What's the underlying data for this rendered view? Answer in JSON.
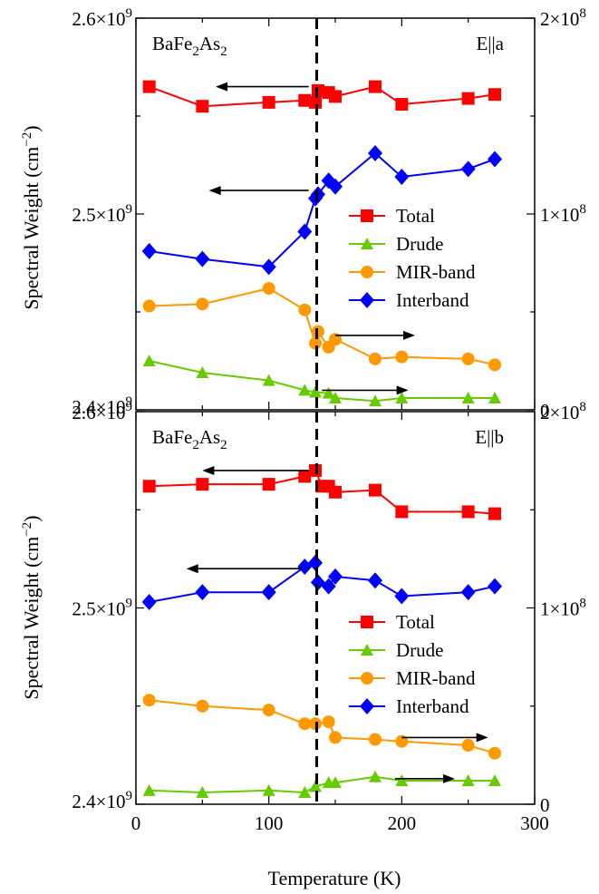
{
  "figure": {
    "xlabel": "Temperature (K)",
    "ylabel": "Spectral Weight (cm",
    "ylabel_sup": "−2",
    "ylabel_end": ")",
    "x_ticks": [
      "0",
      "100",
      "200",
      "300"
    ],
    "transition_T": 136
  },
  "colors": {
    "Total": "#ff0000",
    "Drude": "#66cc00",
    "MIR-band": "#ff9900",
    "Interband": "#0000ff",
    "axis": "#000000"
  },
  "legend": [
    "Total",
    "Drude",
    "MIR-band",
    "Interband"
  ],
  "chart_data": [
    {
      "type": "line",
      "panel": "top",
      "title_main": "BaFe",
      "title_sub1": "2",
      "title_mid": "As",
      "title_sub2": "2",
      "polarization": "E||a",
      "xlim": [
        0,
        300
      ],
      "left_ylim": [
        2400000000.0,
        2600000000.0
      ],
      "right_ylim": [
        0,
        200000000.0
      ],
      "left_ticks": [
        {
          "mant": "2.4×10",
          "exp": "9",
          "value": 2400000000.0
        },
        {
          "mant": "2.5×10",
          "exp": "9",
          "value": 2500000000.0
        },
        {
          "mant": "2.6×10",
          "exp": "9",
          "value": 2600000000.0
        }
      ],
      "right_ticks": [
        {
          "mant": "0",
          "exp": "",
          "value": 0
        },
        {
          "mant": "1×10",
          "exp": "8",
          "value": 100000000.0
        },
        {
          "mant": "2×10",
          "exp": "8",
          "value": 200000000.0
        }
      ],
      "series": [
        {
          "name": "Total",
          "axis": "left",
          "marker": "square",
          "x": [
            10,
            50,
            100,
            127,
            135,
            137,
            145,
            150,
            180,
            200,
            250,
            270
          ],
          "y": [
            2565000000.0,
            2555000000.0,
            2557000000.0,
            2558000000.0,
            2557000000.0,
            2563000000.0,
            2562000000.0,
            2560000000.0,
            2565000000.0,
            2556000000.0,
            2559000000.0,
            2561000000.0
          ]
        },
        {
          "name": "Drude",
          "axis": "right",
          "marker": "triangle",
          "x": [
            10,
            50,
            100,
            127,
            135,
            145,
            150,
            180,
            200,
            250,
            270
          ],
          "y": [
            25000000.0,
            19000000.0,
            15000000.0,
            10000000.0,
            9000000.0,
            8500000.0,
            6000000.0,
            4500000.0,
            6000000.0,
            6000000.0,
            6000000.0
          ]
        },
        {
          "name": "MIR-band",
          "axis": "right",
          "marker": "circle",
          "x": [
            10,
            50,
            100,
            127,
            135,
            137,
            145,
            150,
            180,
            200,
            250,
            270
          ],
          "y": [
            53000000.0,
            54000000.0,
            62000000.0,
            51000000.0,
            34000000.0,
            40000000.0,
            32000000.0,
            36000000.0,
            26000000.0,
            27000000.0,
            26000000.0,
            23000000.0
          ]
        },
        {
          "name": "Interband",
          "axis": "right",
          "marker": "diamond",
          "x": [
            10,
            50,
            100,
            127,
            135,
            137,
            145,
            150,
            180,
            200,
            250,
            270
          ],
          "y": [
            81000000.0,
            77000000.0,
            73000000.0,
            91000000.0,
            108000000.0,
            110000000.0,
            117000000.0,
            114000000.0,
            131000000.0,
            119000000.0,
            123000000.0,
            128000000.0
          ]
        }
      ],
      "arrows": [
        {
          "x_from": 130,
          "x_to": 60,
          "axis": "left",
          "y": 2565000000.0
        },
        {
          "x_from": 130,
          "x_to": 55,
          "axis": "right",
          "y": 112000000.0
        },
        {
          "x_from": 150,
          "x_to": 210,
          "axis": "right",
          "y": 38000000.0
        },
        {
          "x_from": 140,
          "x_to": 205,
          "axis": "right",
          "y": 10000000.0
        }
      ]
    },
    {
      "type": "line",
      "panel": "bottom",
      "title_main": "BaFe",
      "title_sub1": "2",
      "title_mid": "As",
      "title_sub2": "2",
      "polarization": "E||b",
      "xlim": [
        0,
        300
      ],
      "left_ylim": [
        2400000000.0,
        2600000000.0
      ],
      "right_ylim": [
        0,
        200000000.0
      ],
      "left_ticks": [
        {
          "mant": "2.4×10",
          "exp": "9",
          "value": 2400000000.0
        },
        {
          "mant": "2.5×10",
          "exp": "9",
          "value": 2500000000.0
        },
        {
          "mant": "2.6×10",
          "exp": "9",
          "value": 2600000000.0
        }
      ],
      "right_ticks": [
        {
          "mant": "0",
          "exp": "",
          "value": 0
        },
        {
          "mant": "1×10",
          "exp": "8",
          "value": 100000000.0
        },
        {
          "mant": "2×10",
          "exp": "8",
          "value": 200000000.0
        }
      ],
      "series": [
        {
          "name": "Total",
          "axis": "left",
          "marker": "square",
          "x": [
            10,
            50,
            100,
            127,
            135,
            140,
            145,
            150,
            180,
            200,
            250,
            270
          ],
          "y": [
            2562000000.0,
            2563000000.0,
            2563000000.0,
            2567000000.0,
            2570000000.0,
            2562000000.0,
            2562000000.0,
            2559000000.0,
            2560000000.0,
            2549000000.0,
            2549000000.0,
            2548000000.0
          ]
        },
        {
          "name": "Drude",
          "axis": "right",
          "marker": "triangle",
          "x": [
            10,
            50,
            100,
            127,
            135,
            145,
            150,
            180,
            200,
            250,
            270
          ],
          "y": [
            7000000.0,
            6000000.0,
            7000000.0,
            6000000.0,
            9000000.0,
            11000000.0,
            11000000.0,
            14000000.0,
            12000000.0,
            12000000.0,
            12000000.0
          ]
        },
        {
          "name": "MIR-band",
          "axis": "right",
          "marker": "circle",
          "x": [
            10,
            50,
            100,
            127,
            135,
            145,
            150,
            180,
            200,
            250,
            270
          ],
          "y": [
            53000000.0,
            50000000.0,
            48000000.0,
            41000000.0,
            41000000.0,
            42000000.0,
            34000000.0,
            33000000.0,
            32000000.0,
            30000000.0,
            26000000.0
          ]
        },
        {
          "name": "Interband",
          "axis": "right",
          "marker": "diamond",
          "x": [
            10,
            50,
            100,
            127,
            135,
            137,
            145,
            150,
            180,
            200,
            250,
            270
          ],
          "y": [
            103000000.0,
            108000000.0,
            108000000.0,
            121000000.0,
            123000000.0,
            113000000.0,
            111000000.0,
            116000000.0,
            114000000.0,
            106000000.0,
            108000000.0,
            111000000.0
          ]
        }
      ],
      "arrows": [
        {
          "x_from": 130,
          "x_to": 50,
          "axis": "left",
          "y": 2570000000.0
        },
        {
          "x_from": 125,
          "x_to": 38,
          "axis": "right",
          "y": 120000000.0
        },
        {
          "x_from": 200,
          "x_to": 265,
          "axis": "right",
          "y": 34000000.0
        },
        {
          "x_from": 195,
          "x_to": 240,
          "axis": "right",
          "y": 13000000.0
        }
      ]
    }
  ]
}
